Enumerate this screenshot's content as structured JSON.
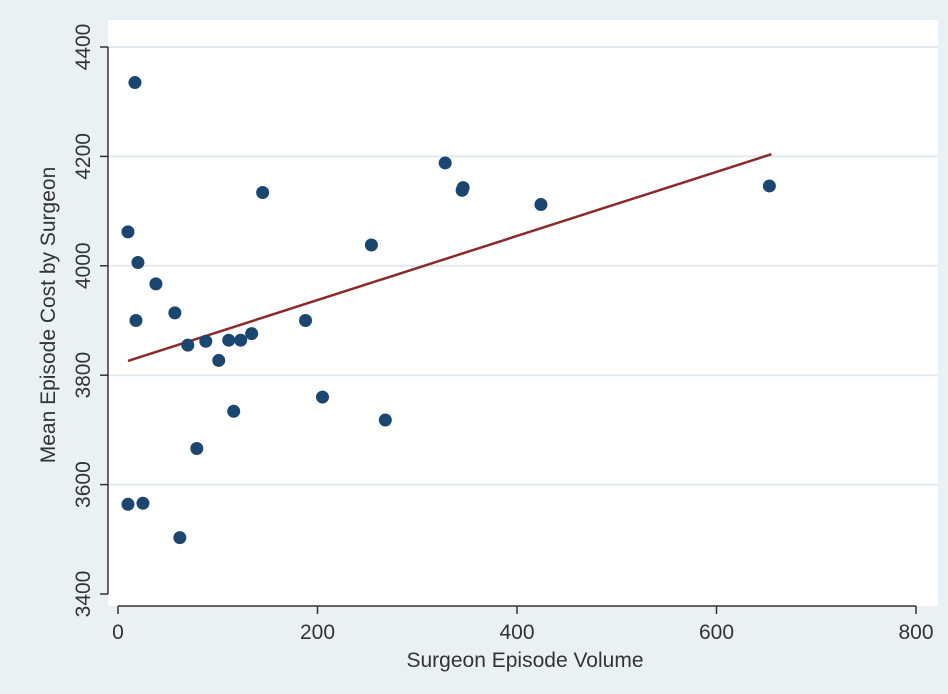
{
  "chart_data": {
    "type": "scatter",
    "title": "",
    "xlabel": "Surgeon Episode Volume",
    "ylabel": "Mean Episode Cost by Surgeon",
    "xlim": [
      0,
      800
    ],
    "ylim": [
      3400,
      4400
    ],
    "xticks": [
      0,
      200,
      400,
      600,
      800
    ],
    "yticks": [
      3400,
      3600,
      3800,
      4000,
      4200,
      4400
    ],
    "grid": "horizontal",
    "legend": "none",
    "points": [
      {
        "x": 17,
        "y": 4335
      },
      {
        "x": 10,
        "y": 4062
      },
      {
        "x": 20,
        "y": 4006
      },
      {
        "x": 18,
        "y": 3900
      },
      {
        "x": 38,
        "y": 3967
      },
      {
        "x": 57,
        "y": 3914
      },
      {
        "x": 70,
        "y": 3855
      },
      {
        "x": 88,
        "y": 3862
      },
      {
        "x": 101,
        "y": 3827
      },
      {
        "x": 111,
        "y": 3864
      },
      {
        "x": 123,
        "y": 3864
      },
      {
        "x": 134,
        "y": 3876
      },
      {
        "x": 145,
        "y": 4134
      },
      {
        "x": 116,
        "y": 3734
      },
      {
        "x": 79,
        "y": 3666
      },
      {
        "x": 10,
        "y": 3564
      },
      {
        "x": 25,
        "y": 3566
      },
      {
        "x": 62,
        "y": 3503
      },
      {
        "x": 188,
        "y": 3900
      },
      {
        "x": 205,
        "y": 3760
      },
      {
        "x": 254,
        "y": 4038
      },
      {
        "x": 268,
        "y": 3718
      },
      {
        "x": 328,
        "y": 4188
      },
      {
        "x": 345,
        "y": 4138
      },
      {
        "x": 346,
        "y": 4143
      },
      {
        "x": 424,
        "y": 4112
      },
      {
        "x": 653,
        "y": 4146
      }
    ],
    "fit_line": {
      "x": [
        10,
        655
      ],
      "y": [
        3826,
        4204
      ]
    },
    "colors": {
      "page_background": "#eaf1f5",
      "plot_background": "#ffffff",
      "marker": "#1a4670",
      "fit_line": "#8b2a2a",
      "gridline": "#e2eaef",
      "axis": "#333333"
    }
  }
}
